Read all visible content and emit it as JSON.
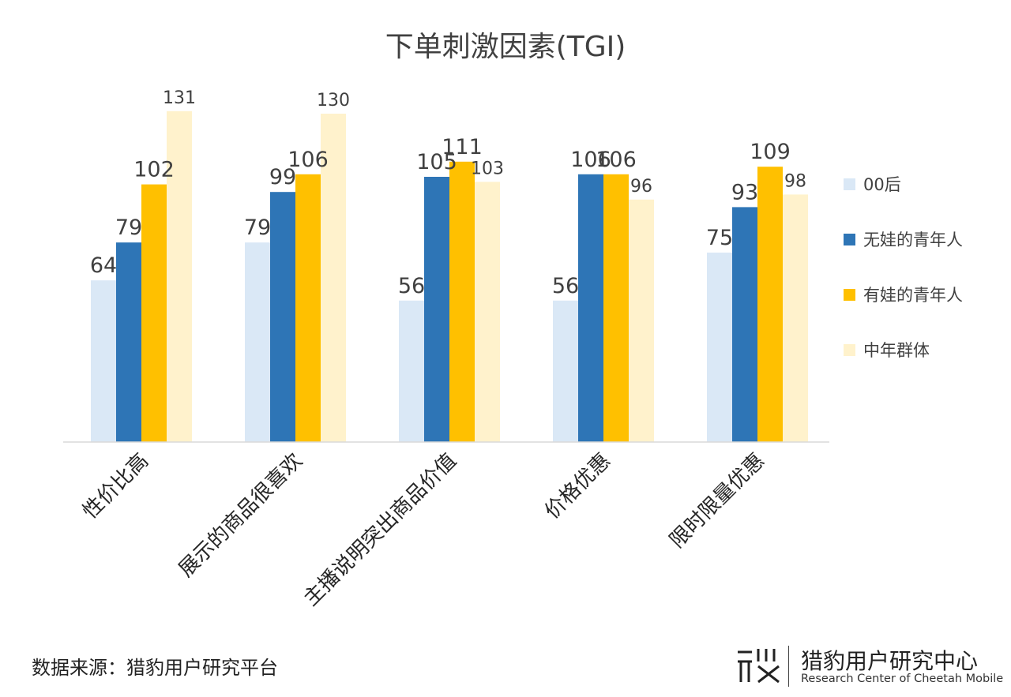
{
  "chart_data": {
    "type": "bar",
    "title": "下单刺激因素(TGI)",
    "categories": [
      "性价比高",
      "展示的商品很喜欢",
      "主播说明突出商品价值",
      "价格优惠",
      "限时限量优惠"
    ],
    "series": [
      {
        "name": "00后",
        "values": [
          64,
          79,
          56,
          56,
          75
        ],
        "color": "#DAE8F6"
      },
      {
        "name": "无娃的青年人",
        "values": [
          79,
          99,
          105,
          106,
          93
        ],
        "color": "#2E75B6"
      },
      {
        "name": "有娃的青年人",
        "values": [
          102,
          106,
          111,
          106,
          109
        ],
        "color": "#FFC000"
      },
      {
        "name": "中年群体",
        "values": [
          131,
          130,
          103,
          96,
          98
        ],
        "color": "#FFF2CC"
      }
    ],
    "legend_position": "right",
    "grid": false,
    "ylim": [
      0,
      140
    ]
  },
  "footer": {
    "source": "数据来源：猎豹用户研究平台",
    "brand_cn": "猎豹用户研究中心",
    "brand_en": "Research Center of Cheetah Mobile"
  }
}
